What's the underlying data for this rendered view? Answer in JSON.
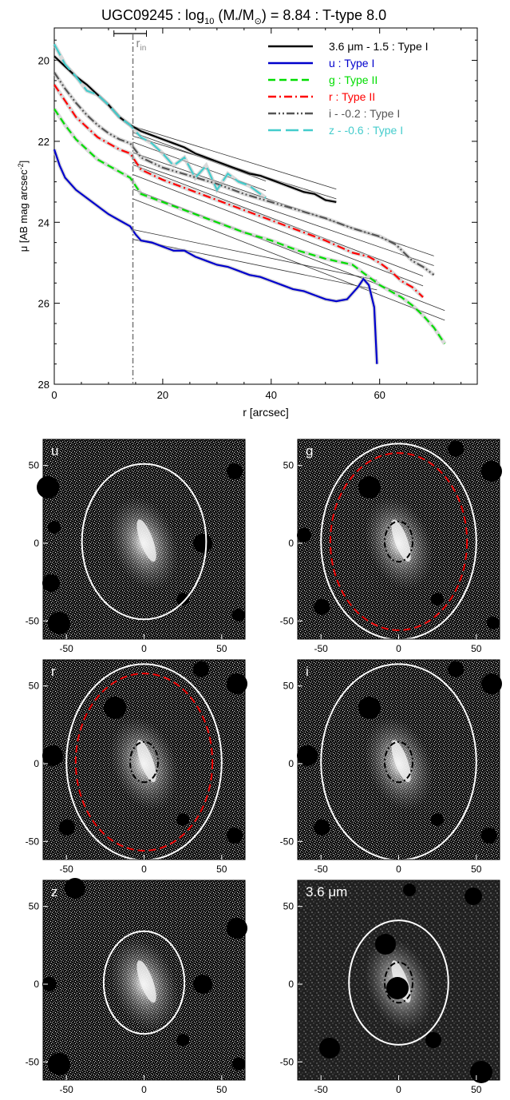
{
  "chart_data": [
    {
      "type": "line",
      "title_main": "UGC09245 : log",
      "title_sub": "10",
      "title_mid": " (M",
      "title_star": "*",
      "title_slash": "/M",
      "title_sun": "⊙",
      "title_end": ") = 8.84 : T-type 8.0",
      "xlabel": "r [arcsec]",
      "ylabel": "μ [AB mag arcsec",
      "ylabel_sup": "-2",
      "ylabel_end": "]",
      "xlim": [
        0,
        78
      ],
      "ylim": [
        28,
        19.2
      ],
      "y_inverted": true,
      "x_ticks": [
        "0",
        "20",
        "40",
        "60"
      ],
      "x_tick_values": [
        0,
        20,
        40,
        60
      ],
      "y_ticks": [
        "20",
        "22",
        "24",
        "26",
        "28"
      ],
      "y_tick_values": [
        20,
        22,
        24,
        26,
        28
      ],
      "r_in_label": "r",
      "r_in_sub": "in",
      "r_in": 14.5,
      "r_in_err": [
        11,
        17
      ],
      "legend_position": "top-right",
      "grid": false,
      "series": [
        {
          "name": "3.6 μm - 1.5 : Type I",
          "color": "#000000",
          "dash": "solid",
          "x": [
            0,
            2,
            4,
            6,
            8,
            10,
            12,
            14,
            16,
            18,
            20,
            22,
            24,
            26,
            28,
            30,
            32,
            34,
            36,
            38,
            40,
            42,
            44,
            46,
            48,
            50,
            52
          ],
          "y": [
            19.9,
            20.15,
            20.4,
            20.6,
            20.85,
            21.1,
            21.4,
            21.6,
            21.75,
            21.85,
            21.95,
            22.05,
            22.15,
            22.3,
            22.4,
            22.5,
            22.6,
            22.7,
            22.8,
            22.85,
            22.95,
            23.05,
            23.15,
            23.25,
            23.3,
            23.45,
            23.5
          ]
        },
        {
          "name": "u : Type I",
          "color": "#0000cc",
          "dash": "solid",
          "x": [
            0,
            1,
            2,
            4,
            6,
            8,
            10,
            12,
            14,
            15,
            16,
            18,
            20,
            22,
            24,
            26,
            28,
            30,
            32,
            34,
            36,
            38,
            40,
            42,
            44,
            46,
            48,
            50,
            52,
            54,
            56,
            57,
            58,
            59,
            59.5
          ],
          "y": [
            22.2,
            22.6,
            22.9,
            23.2,
            23.4,
            23.6,
            23.8,
            23.95,
            24.1,
            24.3,
            24.45,
            24.5,
            24.6,
            24.7,
            24.7,
            24.85,
            24.95,
            25.05,
            25.1,
            25.2,
            25.3,
            25.35,
            25.45,
            25.55,
            25.65,
            25.7,
            25.8,
            25.9,
            25.95,
            25.9,
            25.6,
            25.4,
            25.55,
            26.1,
            27.5
          ]
        },
        {
          "name": "g : Type II",
          "color": "#00dd00",
          "dash": "dashed",
          "x": [
            0,
            2,
            4,
            6,
            8,
            10,
            12,
            14,
            16,
            20,
            25,
            30,
            35,
            40,
            45,
            50,
            55,
            58,
            60,
            62,
            64,
            66,
            68,
            70,
            72
          ],
          "y": [
            21.2,
            21.6,
            21.95,
            22.2,
            22.45,
            22.6,
            22.75,
            22.9,
            23.3,
            23.5,
            23.75,
            24.0,
            24.25,
            24.45,
            24.7,
            24.9,
            25.05,
            25.35,
            25.55,
            25.7,
            25.85,
            26.05,
            26.3,
            26.6,
            27.0
          ]
        },
        {
          "name": "r : Type II",
          "color": "#ff0000",
          "dash": "dashdot",
          "x": [
            0,
            2,
            4,
            6,
            8,
            10,
            12,
            14,
            16,
            20,
            25,
            30,
            35,
            40,
            45,
            50,
            55,
            58,
            60,
            62,
            64,
            66,
            68
          ],
          "y": [
            20.6,
            21.0,
            21.4,
            21.65,
            21.9,
            22.05,
            22.2,
            22.3,
            22.7,
            22.95,
            23.2,
            23.45,
            23.7,
            23.95,
            24.2,
            24.45,
            24.75,
            24.85,
            25.0,
            25.2,
            25.45,
            25.6,
            25.85
          ]
        },
        {
          "name": "i - -0.2 : Type I",
          "color": "#555555",
          "dash": "dashdotdot",
          "x": [
            0,
            2,
            4,
            6,
            8,
            10,
            12,
            14,
            16,
            20,
            25,
            30,
            35,
            40,
            45,
            50,
            55,
            60,
            63,
            66,
            68,
            70
          ],
          "y": [
            20.3,
            20.7,
            21.05,
            21.35,
            21.6,
            21.8,
            21.95,
            22.05,
            22.4,
            22.65,
            22.85,
            23.05,
            23.3,
            23.5,
            23.7,
            23.9,
            24.15,
            24.35,
            24.55,
            24.95,
            25.1,
            25.3
          ]
        },
        {
          "name": "z - -0.6 : Type I",
          "color": "#44cccc",
          "dash": "longdash",
          "x": [
            0,
            2,
            4,
            6,
            8,
            10,
            12,
            14,
            16,
            18,
            20,
            22,
            24,
            26,
            28,
            30,
            32,
            34,
            36,
            38,
            39
          ],
          "y": [
            19.6,
            20.1,
            20.4,
            20.75,
            20.85,
            21.1,
            21.4,
            21.6,
            21.9,
            22.05,
            22.3,
            22.6,
            22.4,
            22.9,
            22.6,
            23.2,
            22.8,
            23.0,
            23.1,
            23.3,
            23.4
          ]
        }
      ]
    },
    {
      "type": "image-grid",
      "panels": [
        {
          "label": "u",
          "x_ticks": [
            "-50",
            "0",
            "50"
          ],
          "y_ticks": [
            "50",
            "0",
            "-50"
          ],
          "ellipse_outer": "white-solid",
          "ellipse_break": "none"
        },
        {
          "label": "g",
          "x_ticks": [
            "-50",
            "0",
            "50"
          ],
          "y_ticks": [
            "50",
            "0",
            "-50"
          ],
          "ellipse_outer": "white-solid",
          "ellipse_break": "red-dashed"
        },
        {
          "label": "r",
          "x_ticks": [
            "-50",
            "0",
            "50"
          ],
          "y_ticks": [
            "50",
            "0",
            "-50"
          ],
          "ellipse_outer": "white-solid",
          "ellipse_break": "red-dashed"
        },
        {
          "label": "i",
          "x_ticks": [
            "-50",
            "0",
            "50"
          ],
          "y_ticks": [
            "50",
            "0",
            "-50"
          ],
          "ellipse_outer": "white-solid",
          "ellipse_break": "none"
        },
        {
          "label": "z",
          "x_ticks": [
            "-50",
            "0",
            "50"
          ],
          "y_ticks": [
            "50",
            "0",
            "-50"
          ],
          "ellipse_outer": "white-solid",
          "ellipse_break": "none"
        },
        {
          "label": "3.6 μm",
          "x_ticks": [
            "-50",
            "0",
            "50"
          ],
          "y_ticks": [
            "50",
            "0",
            "-50"
          ],
          "ellipse_outer": "white-solid",
          "ellipse_break": "none"
        }
      ]
    }
  ]
}
